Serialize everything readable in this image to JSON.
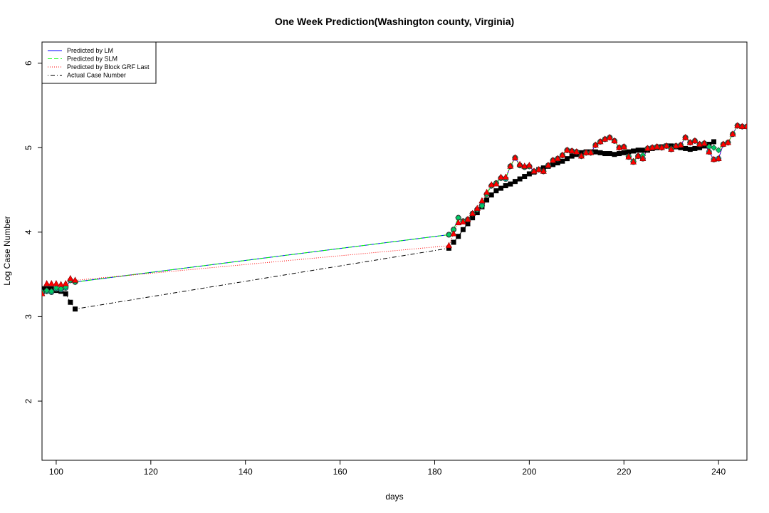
{
  "chart_data": {
    "type": "line",
    "title": "One Week Prediction(Washington county, Virginia)",
    "xlabel": "days",
    "ylabel": "Log Case Number",
    "xlim": [
      97,
      246
    ],
    "ylim": [
      1.3,
      6.25
    ],
    "xticks": [
      100,
      120,
      140,
      160,
      180,
      200,
      220,
      240
    ],
    "yticks": [
      2,
      3,
      4,
      5,
      6
    ],
    "grid": false,
    "legend_position": "top-left",
    "x": [
      97,
      98,
      99,
      100,
      101,
      102,
      103,
      104,
      183,
      184,
      185,
      186,
      187,
      188,
      189,
      190,
      191,
      192,
      193,
      194,
      195,
      196,
      197,
      198,
      199,
      200,
      201,
      202,
      203,
      204,
      205,
      206,
      207,
      208,
      209,
      210,
      211,
      212,
      213,
      214,
      215,
      216,
      217,
      218,
      219,
      220,
      221,
      222,
      223,
      224,
      225,
      226,
      227,
      228,
      229,
      230,
      231,
      232,
      233,
      234,
      235,
      236,
      237,
      238,
      239,
      240,
      241,
      242,
      243,
      244,
      245,
      246
    ],
    "series": [
      {
        "name": "Predicted by LM",
        "line_color": "#0000ff",
        "line_style": "solid",
        "marker": "circle",
        "marker_color": "#00cccc",
        "values": [
          3.28,
          3.3,
          3.29,
          3.33,
          3.32,
          3.34,
          3.43,
          3.41,
          3.97,
          4.03,
          4.17,
          4.13,
          4.15,
          4.22,
          4.27,
          4.32,
          4.45,
          4.55,
          4.58,
          4.64,
          4.63,
          4.78,
          4.88,
          4.79,
          4.77,
          4.78,
          4.72,
          4.74,
          4.72,
          4.79,
          4.85,
          4.87,
          4.91,
          4.97,
          4.96,
          4.95,
          4.9,
          4.94,
          4.94,
          5.03,
          5.07,
          5.1,
          5.12,
          5.08,
          5.0,
          5.01,
          4.89,
          4.83,
          4.9,
          4.87,
          4.99,
          5.0,
          5.01,
          5.0,
          5.02,
          4.98,
          5.02,
          5.03,
          5.12,
          5.06,
          5.08,
          5.04,
          5.05,
          4.95,
          4.86,
          4.87,
          5.04,
          5.06,
          5.16,
          5.26,
          5.25,
          5.25
        ]
      },
      {
        "name": "Predicted by SLM",
        "line_color": "#00ff00",
        "line_style": "dashed",
        "marker": "diamond",
        "marker_color": "#00cc66",
        "values": [
          3.29,
          3.31,
          3.3,
          3.34,
          3.33,
          3.35,
          3.43,
          3.41,
          3.97,
          4.03,
          4.17,
          4.13,
          4.15,
          4.22,
          4.27,
          4.31,
          4.45,
          4.55,
          4.58,
          4.64,
          4.64,
          4.78,
          4.88,
          4.79,
          4.77,
          4.78,
          4.72,
          4.74,
          4.72,
          4.79,
          4.85,
          4.87,
          4.91,
          4.97,
          4.96,
          4.95,
          4.9,
          4.94,
          4.94,
          5.03,
          5.07,
          5.1,
          5.12,
          5.08,
          5.0,
          5.01,
          4.9,
          4.84,
          4.9,
          4.91,
          4.99,
          5.0,
          5.01,
          5.0,
          5.02,
          4.99,
          5.02,
          5.03,
          5.12,
          5.06,
          5.08,
          5.04,
          5.05,
          5.01,
          5.0,
          4.97,
          5.04,
          5.06,
          5.16,
          5.26,
          5.25,
          5.25
        ]
      },
      {
        "name": "Predicted by Block GRF Last",
        "line_color": "#ff0000",
        "line_style": "dotted",
        "marker": "triangle",
        "marker_color": "#ff0000",
        "values": [
          3.27,
          3.39,
          3.39,
          3.39,
          3.38,
          3.39,
          3.45,
          3.43,
          3.84,
          3.98,
          4.11,
          4.12,
          4.15,
          4.22,
          4.28,
          4.37,
          4.47,
          4.56,
          4.57,
          4.65,
          4.65,
          4.78,
          4.88,
          4.8,
          4.78,
          4.79,
          4.72,
          4.74,
          4.72,
          4.79,
          4.85,
          4.87,
          4.91,
          4.97,
          4.96,
          4.95,
          4.9,
          4.94,
          4.94,
          5.03,
          5.07,
          5.1,
          5.12,
          5.08,
          5.0,
          5.01,
          4.89,
          4.83,
          4.9,
          4.87,
          4.99,
          5.0,
          5.01,
          5.0,
          5.02,
          4.98,
          5.02,
          5.03,
          5.12,
          5.06,
          5.08,
          5.04,
          5.05,
          4.95,
          4.86,
          4.87,
          5.04,
          5.06,
          5.16,
          5.26,
          5.25,
          5.25
        ]
      },
      {
        "name": "Actual Case Number",
        "line_color": "#000000",
        "line_style": "dotdash",
        "marker": "square",
        "marker_color": "#000000",
        "values": [
          3.33,
          3.33,
          3.33,
          3.31,
          3.3,
          3.27,
          3.17,
          3.09,
          3.81,
          3.88,
          3.95,
          4.03,
          4.1,
          4.17,
          4.23,
          4.3,
          4.38,
          4.44,
          4.49,
          4.52,
          4.55,
          4.57,
          4.6,
          4.63,
          4.66,
          4.69,
          4.71,
          4.74,
          4.76,
          4.78,
          4.8,
          4.82,
          4.84,
          4.87,
          4.9,
          4.92,
          4.94,
          4.95,
          4.95,
          4.95,
          4.94,
          4.93,
          4.93,
          4.92,
          4.93,
          4.94,
          4.95,
          4.96,
          4.97,
          4.97,
          4.97,
          4.99,
          5.0,
          5.01,
          5.02,
          5.02,
          5.01,
          5.0,
          4.99,
          4.98,
          4.99,
          5.0,
          5.02,
          5.04,
          5.07,
          null,
          null,
          null,
          null,
          null,
          null,
          null
        ]
      }
    ]
  }
}
